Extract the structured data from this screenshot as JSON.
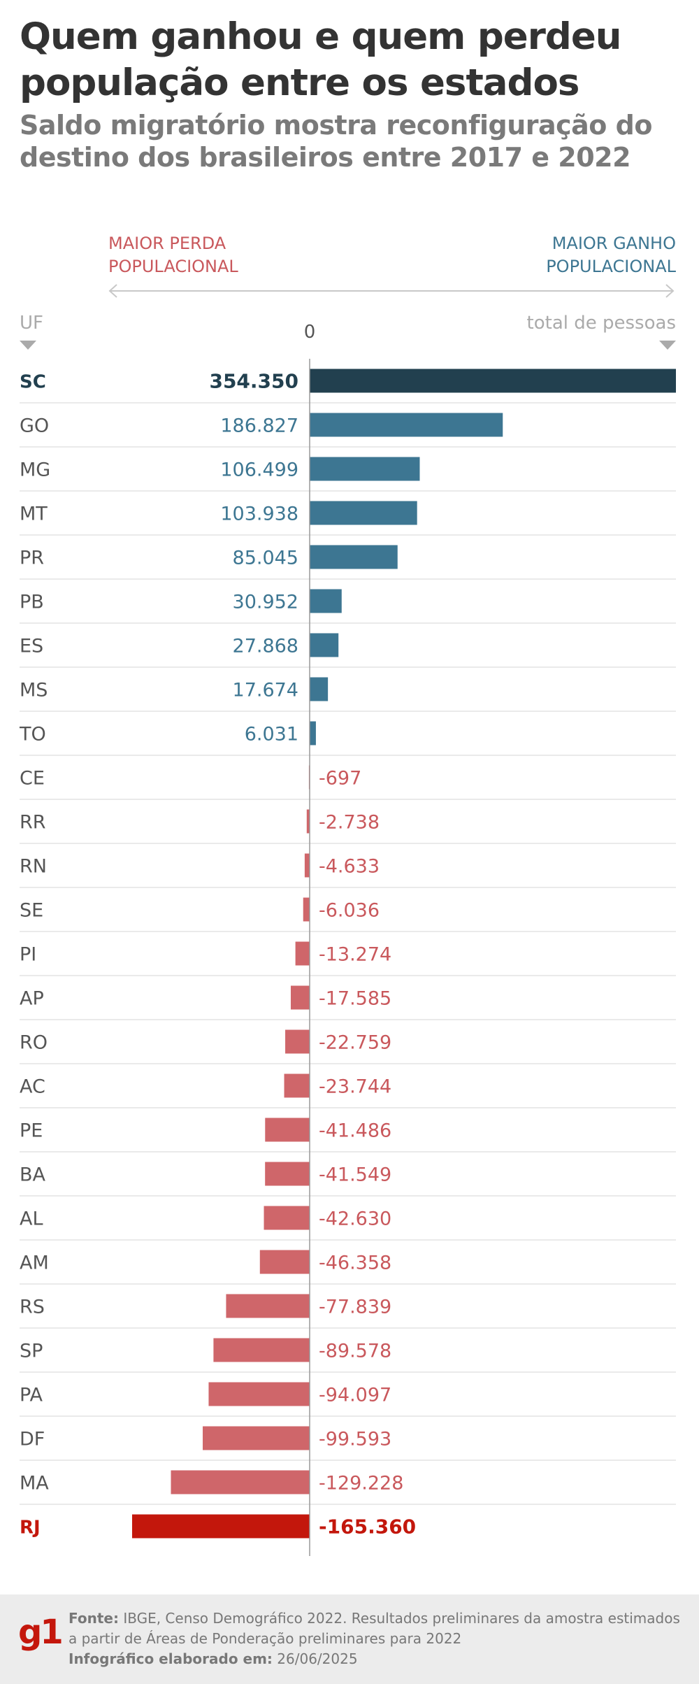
{
  "title": "Quem ganhou e quem perdeu população entre os estados",
  "subtitle": "Saldo migratório mostra reconfiguração do destino dos brasileiros entre 2017 e 2022",
  "legend": {
    "loss_label": "MAIOR PERDA POPULACIONAL",
    "gain_label": "MAIOR GANHO POPULACIONAL"
  },
  "colors": {
    "highlight_positive": "#22404f",
    "positive": "#3d7692",
    "negative": "#cf666a",
    "highlight_negative": "#c3170c",
    "label_positive_top": "#22404f",
    "label_positive": "#3d7692",
    "label_negative": "#c9585c",
    "label_negative_bottom": "#c3170c"
  },
  "chart_data": {
    "type": "bar",
    "orientation": "horizontal",
    "xlabel": "total de pessoas",
    "ylabel": "UF",
    "zero_label": "0",
    "xlim": [
      -165360,
      354350
    ],
    "categories": [
      "SC",
      "GO",
      "MG",
      "MT",
      "PR",
      "PB",
      "ES",
      "MS",
      "TO",
      "CE",
      "RR",
      "RN",
      "SE",
      "PI",
      "AP",
      "RO",
      "AC",
      "PE",
      "BA",
      "AL",
      "AM",
      "RS",
      "SP",
      "PA",
      "DF",
      "MA",
      "RJ"
    ],
    "values": [
      354350,
      186827,
      106499,
      103938,
      85045,
      30952,
      27868,
      17674,
      6031,
      -697,
      -2738,
      -4633,
      -6036,
      -13274,
      -17585,
      -22759,
      -23744,
      -41486,
      -41549,
      -42630,
      -46358,
      -77839,
      -89578,
      -94097,
      -99593,
      -129228,
      -165360
    ],
    "value_labels": [
      "354.350",
      "186.827",
      "106.499",
      "103.938",
      "85.045",
      "30.952",
      "27.868",
      "17.674",
      "6.031",
      "-697",
      "-2.738",
      "-4.633",
      "-6.036",
      "-13.274",
      "-17.585",
      "-22.759",
      "-23.744",
      "-41.486",
      "-41.549",
      "-42.630",
      "-46.358",
      "-77.839",
      "-89.578",
      "-94.097",
      "-99.593",
      "-129.228",
      "-165.360"
    ],
    "highlighted": [
      "SC",
      "RJ"
    ]
  },
  "footer": {
    "logo": "g1",
    "source_label": "Fonte:",
    "source_text": "IBGE, Censo Demográfico 2022. Resultados preliminares da amostra estimados a partir de Áreas de Ponderação preliminares para 2022",
    "date_label": "Infográfico elaborado em:",
    "date_text": "26/06/2025"
  }
}
